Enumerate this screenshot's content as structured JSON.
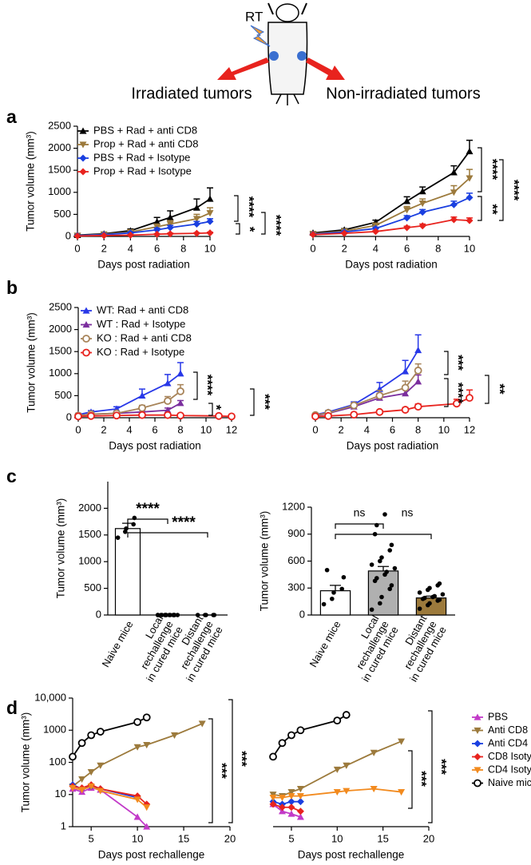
{
  "header": {
    "rt": "RT",
    "left": "Irradiated tumors",
    "right": "Non-irradiated tumors"
  },
  "chart_data": [
    {
      "panel": "a",
      "type": "line",
      "xlabel": "Days post radiation",
      "ylabel": "Tumor volume (mm³)",
      "x": [
        0,
        2,
        4,
        6,
        7,
        9,
        10
      ],
      "xlim": [
        0,
        10
      ],
      "xticks": [
        0,
        2,
        4,
        6,
        8,
        10
      ],
      "ylim": [
        0,
        2500
      ],
      "yticks": [
        0,
        500,
        1000,
        1500,
        2000,
        2500
      ],
      "legend": "upper left",
      "series": [
        {
          "name": "PBS + Rad + anti CD8",
          "color": "#000000",
          "marker": "triangle-up",
          "values": [
            30,
            60,
            130,
            330,
            430,
            650,
            850
          ],
          "errors": [
            15,
            20,
            40,
            100,
            150,
            200,
            250
          ]
        },
        {
          "name": "Prop + Rad + anti CD8",
          "color": "#9c7a3c",
          "marker": "triangle-down",
          "values": [
            20,
            50,
            100,
            220,
            280,
            400,
            530
          ],
          "errors": [
            10,
            15,
            30,
            60,
            80,
            100,
            120
          ]
        },
        {
          "name": "PBS + Rad + Isotype",
          "color": "#1a3fe0",
          "marker": "diamond",
          "values": [
            20,
            40,
            80,
            150,
            200,
            280,
            340
          ],
          "errors": [
            10,
            10,
            20,
            40,
            50,
            60,
            60
          ]
        },
        {
          "name": "Prop + Rad + Isotype",
          "color": "#e8231e",
          "marker": "diamond",
          "values": [
            10,
            20,
            30,
            50,
            60,
            70,
            80
          ],
          "errors": [
            5,
            5,
            10,
            10,
            15,
            15,
            15
          ]
        }
      ],
      "annotations": [
        "****",
        "*",
        "****"
      ]
    },
    {
      "type": "line",
      "xlabel": "Days post radiation",
      "yaxis": false,
      "x": [
        0,
        2,
        4,
        6,
        7,
        9,
        10
      ],
      "xlim": [
        0,
        10
      ],
      "xticks": [
        0,
        2,
        4,
        6,
        8,
        10
      ],
      "ylim": [
        0,
        2500
      ],
      "series": [
        {
          "color": "#000000",
          "marker": "triangle-up",
          "values": [
            80,
            150,
            320,
            800,
            1020,
            1450,
            1930
          ],
          "errors": [
            20,
            30,
            50,
            100,
            100,
            150,
            250
          ]
        },
        {
          "color": "#9c7a3c",
          "marker": "triangle-down",
          "values": [
            60,
            120,
            250,
            600,
            750,
            1000,
            1320
          ],
          "errors": [
            20,
            30,
            50,
            80,
            100,
            150,
            200
          ]
        },
        {
          "color": "#1a3fe0",
          "marker": "diamond",
          "values": [
            50,
            100,
            180,
            420,
            550,
            720,
            880
          ],
          "errors": [
            10,
            20,
            30,
            50,
            60,
            80,
            100
          ]
        },
        {
          "color": "#e8231e",
          "marker": "diamond",
          "values": [
            40,
            70,
            110,
            200,
            240,
            380,
            360
          ],
          "errors": [
            10,
            15,
            20,
            30,
            40,
            60,
            60
          ]
        }
      ],
      "annotations": [
        "****",
        "**",
        "****"
      ]
    },
    {
      "panel": "b",
      "type": "line",
      "xlabel": "Days post radiation",
      "ylabel": "Tumor volume (mm³)",
      "x": [
        0,
        1,
        3,
        5,
        7,
        8,
        11,
        12
      ],
      "xlim": [
        0,
        12
      ],
      "xticks": [
        0,
        2,
        4,
        6,
        8,
        10,
        12
      ],
      "ylim": [
        0,
        2500
      ],
      "yticks": [
        0,
        500,
        1000,
        1500,
        2000,
        2500
      ],
      "legend": "upper left",
      "series": [
        {
          "name": "WT: Rad + anti CD8",
          "color": "#2838e8",
          "marker": "triangle-up",
          "values": [
            70,
            130,
            200,
            500,
            780,
            1000,
            null,
            null
          ],
          "errors": [
            30,
            30,
            50,
            150,
            200,
            250,
            null,
            null
          ]
        },
        {
          "name": "WT : Rad + Isotype",
          "color": "#7b2e9e",
          "marker": "triangle-up",
          "values": [
            50,
            80,
            100,
            130,
            170,
            330,
            null,
            null
          ],
          "errors": [
            20,
            20,
            30,
            40,
            50,
            60,
            null,
            null
          ]
        },
        {
          "name": "KO : Rad + anti CD8",
          "color": "#a8845a",
          "marker": "circle-open",
          "values": [
            50,
            80,
            100,
            220,
            380,
            600,
            null,
            null
          ],
          "errors": [
            20,
            20,
            30,
            60,
            100,
            150,
            null,
            null
          ]
        },
        {
          "name": "KO : Rad + Isotype",
          "color": "#e8231e",
          "marker": "circle-open",
          "values": [
            30,
            40,
            50,
            60,
            60,
            50,
            40,
            30
          ],
          "errors": [
            10,
            10,
            10,
            20,
            20,
            20,
            20,
            20
          ]
        }
      ],
      "annotations": [
        "****",
        "*",
        "***"
      ]
    },
    {
      "type": "line",
      "xlabel": "Days post radiation",
      "yaxis": false,
      "x": [
        0,
        1,
        3,
        5,
        7,
        8,
        11,
        12
      ],
      "xlim": [
        0,
        12
      ],
      "xticks": [
        0,
        2,
        4,
        6,
        8,
        10,
        12
      ],
      "ylim": [
        0,
        2500
      ],
      "series": [
        {
          "color": "#2838e8",
          "marker": "triangle-up",
          "values": [
            70,
            130,
            300,
            650,
            1050,
            1530,
            null,
            null
          ],
          "errors": [
            20,
            30,
            60,
            150,
            250,
            350,
            null,
            null
          ]
        },
        {
          "color": "#7b2e9e",
          "marker": "triangle-up",
          "values": [
            50,
            100,
            250,
            450,
            550,
            820,
            null,
            null
          ],
          "errors": [
            20,
            20,
            40,
            100,
            100,
            150,
            null,
            null
          ]
        },
        {
          "color": "#a8845a",
          "marker": "circle-open",
          "values": [
            60,
            110,
            280,
            500,
            680,
            1070,
            null,
            null
          ],
          "errors": [
            20,
            30,
            50,
            120,
            150,
            150,
            null,
            null
          ]
        },
        {
          "color": "#e8231e",
          "marker": "circle-open",
          "values": [
            30,
            40,
            70,
            130,
            180,
            250,
            320,
            450
          ],
          "errors": [
            10,
            10,
            20,
            30,
            50,
            60,
            100,
            180
          ]
        }
      ],
      "annotations": [
        "***",
        "****",
        "**"
      ]
    },
    {
      "panel": "c",
      "type": "bar",
      "ylabel": "Tumor volume (mm³)",
      "categories": [
        [
          "Naive mice"
        ],
        [
          "Local",
          "rechallenge",
          "in cured mice"
        ],
        [
          "Distant",
          "rechallenge",
          "in cured mice"
        ]
      ],
      "values": [
        1620,
        0,
        0
      ],
      "errors": [
        100,
        0,
        0
      ],
      "colors": [
        "#ffffff",
        "#ffffff",
        "#ffffff"
      ],
      "points": [
        [
          1450,
          1560,
          1620,
          1700,
          1820
        ],
        [
          0,
          0,
          0,
          0,
          0,
          0,
          0,
          0,
          0,
          0,
          0,
          0,
          0,
          0,
          0
        ],
        [
          0,
          0,
          0,
          0,
          0
        ]
      ],
      "ylim": [
        0,
        2500
      ],
      "yticks": [
        0,
        500,
        1000,
        1500,
        2000
      ],
      "annotations": [
        "****",
        "****"
      ]
    },
    {
      "type": "bar",
      "ylabel": "Tumor volume (mm³)",
      "categories": [
        [
          "Naive mice"
        ],
        [
          "Local",
          "rechallenge",
          "in cured mice"
        ],
        [
          "Distant",
          "rechallenge",
          "in cured mice"
        ]
      ],
      "values": [
        270,
        490,
        190
      ],
      "errors": [
        60,
        50,
        20
      ],
      "colors": [
        "#ffffff",
        "#b0b0b0",
        "#9c7a3c"
      ],
      "points": [
        [
          120,
          180,
          250,
          290,
          420,
          500
        ],
        [
          60,
          130,
          200,
          290,
          330,
          380,
          410,
          450,
          480,
          520,
          560,
          600,
          640,
          720,
          780,
          900,
          1000,
          1120
        ],
        [
          70,
          110,
          130,
          160,
          170,
          180,
          190,
          200,
          210,
          230,
          250,
          280,
          300,
          330,
          350
        ]
      ],
      "ylim": [
        0,
        1200
      ],
      "yticks": [
        0,
        300,
        600,
        900,
        1200
      ],
      "annotations": [
        "ns",
        "ns"
      ]
    },
    {
      "panel": "d",
      "type": "line",
      "log": true,
      "xlabel": "Days post rechallenge",
      "ylabel": "Tumor volume (mm³)",
      "xlim": [
        3,
        20
      ],
      "xticks": [
        5,
        10,
        15,
        20
      ],
      "ylim": [
        1,
        10000
      ],
      "yticks": [
        1,
        10,
        100,
        1000,
        {
          "value": 10000,
          "label": "10,000"
        }
      ],
      "series": [
        {
          "color": "#c23ac8",
          "marker": "triangle-up",
          "x": [
            3,
            4,
            5,
            6,
            10,
            11
          ],
          "values": [
            15,
            12,
            16,
            14,
            2,
            1
          ]
        },
        {
          "color": "#9c7a3c",
          "marker": "triangle-down",
          "x": [
            3,
            4,
            5,
            6,
            10,
            11,
            14,
            17
          ],
          "values": [
            18,
            30,
            50,
            80,
            300,
            350,
            700,
            1600
          ]
        },
        {
          "color": "#1a3fe0",
          "marker": "diamond",
          "x": [
            3,
            4,
            5,
            6,
            10
          ],
          "values": [
            20,
            15,
            18,
            15,
            8
          ]
        },
        {
          "color": "#e8231e",
          "marker": "diamond",
          "x": [
            3,
            4,
            5,
            6,
            10,
            11
          ],
          "values": [
            18,
            16,
            20,
            15,
            9,
            5
          ]
        },
        {
          "color": "#f28a1e",
          "marker": "triangle-down",
          "x": [
            3,
            4,
            5,
            6,
            10,
            11
          ],
          "values": [
            16,
            14,
            18,
            13,
            7,
            4
          ]
        },
        {
          "color": "#000000",
          "marker": "circle-open",
          "x": [
            3,
            4,
            5,
            6,
            10,
            11
          ],
          "values": [
            150,
            400,
            700,
            900,
            1800,
            2500
          ]
        }
      ],
      "annotations": [
        "***",
        "***"
      ]
    },
    {
      "type": "line",
      "log": true,
      "xlabel": "Days post rechallenge",
      "yaxis": false,
      "legend": "right",
      "xlim": [
        3,
        20
      ],
      "xticks": [
        5,
        10,
        15,
        20
      ],
      "ylim": [
        1,
        10000
      ],
      "series": [
        {
          "name": "PBS",
          "color": "#c23ac8",
          "marker": "triangle-up",
          "x": [
            3,
            4,
            5,
            6
          ],
          "values": [
            5,
            3,
            2.5,
            2
          ]
        },
        {
          "name": "Anti CD8",
          "color": "#9c7a3c",
          "marker": "triangle-down",
          "x": [
            3,
            4,
            5,
            6,
            10,
            11,
            14,
            17
          ],
          "values": [
            10,
            9,
            12,
            15,
            60,
            80,
            200,
            450
          ]
        },
        {
          "name": "Anti CD4",
          "color": "#1a3fe0",
          "marker": "diamond",
          "x": [
            3,
            4,
            5,
            6
          ],
          "values": [
            6,
            5,
            6,
            6
          ]
        },
        {
          "name": "CD8 Isotype",
          "color": "#e8231e",
          "marker": "diamond",
          "x": [
            3,
            4,
            5,
            6
          ],
          "values": [
            5,
            4,
            4,
            3
          ]
        },
        {
          "name": "CD4 Isotype",
          "color": "#f28a1e",
          "marker": "triangle-down",
          "x": [
            3,
            4,
            5,
            6,
            10,
            11,
            14,
            17
          ],
          "values": [
            8,
            8,
            9,
            9,
            12,
            13,
            15,
            12
          ]
        },
        {
          "name": "Naive mice",
          "color": "#000000",
          "marker": "circle-open",
          "x": [
            3,
            4,
            5,
            6,
            10,
            11
          ],
          "values": [
            150,
            400,
            700,
            1000,
            2000,
            3000
          ]
        }
      ],
      "annotations": [
        "***",
        "***"
      ]
    }
  ]
}
